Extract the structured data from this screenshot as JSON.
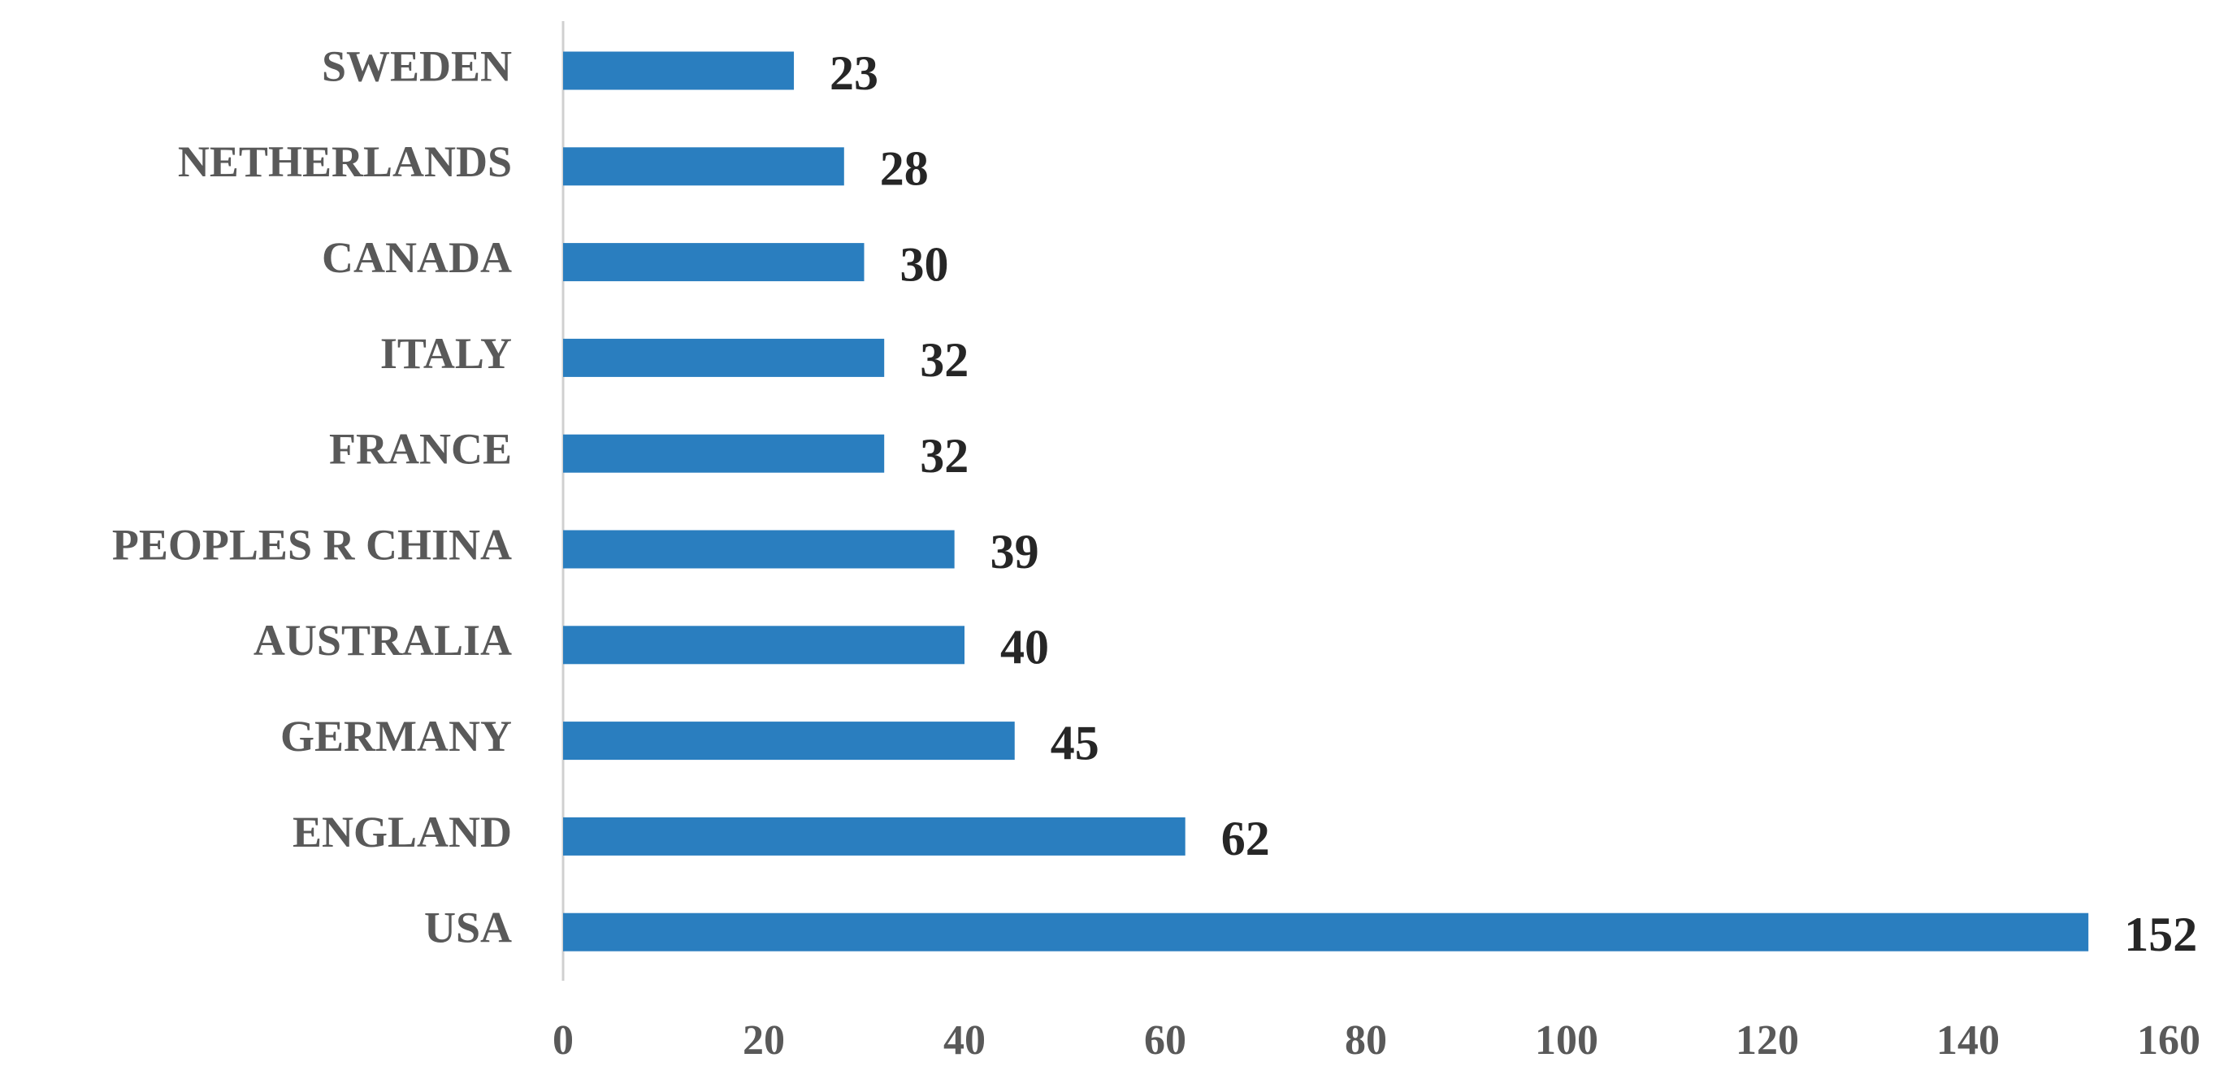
{
  "chart_data": {
    "type": "bar",
    "orientation": "horizontal",
    "categories": [
      "SWEDEN",
      "NETHERLANDS",
      "CANADA",
      "ITALY",
      "FRANCE",
      "PEOPLES R CHINA",
      "AUSTRALIA",
      "GERMANY",
      "ENGLAND",
      "USA"
    ],
    "values": [
      23,
      28,
      30,
      32,
      32,
      39,
      40,
      45,
      62,
      152
    ],
    "color": "#2a7ebf",
    "xlim": [
      0,
      160
    ],
    "xticks": [
      0,
      20,
      40,
      60,
      80,
      100,
      120,
      140,
      160
    ],
    "grid": false,
    "data_labels": true
  }
}
